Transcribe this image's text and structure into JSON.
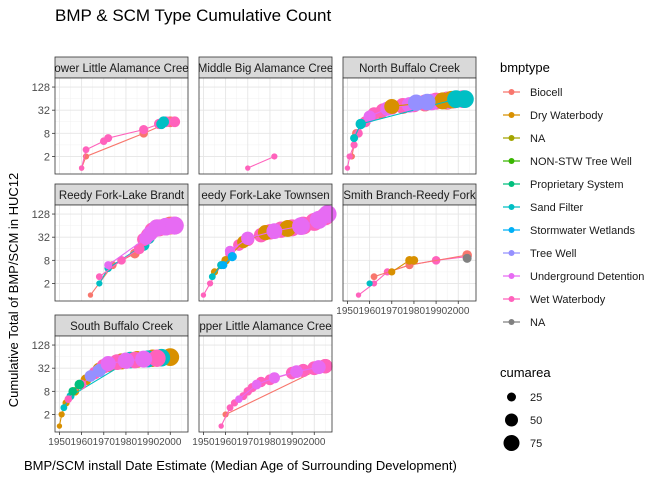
{
  "chart_data": {
    "type": "scatter",
    "title": "BMP & SCM Type Cumulative Count",
    "xlabel": "BMP/SCM install Date Estimate (Median Age of Surrounding Development)",
    "ylabel": "Cumulative Total of BMP/SCM in HUC12",
    "x_ticks": [
      1950,
      1960,
      1970,
      1980,
      1990,
      2000
    ],
    "y_ticks": [
      2,
      8,
      32,
      128
    ],
    "y_scale": "log2",
    "xlim": [
      1948,
      2008
    ],
    "ylim": [
      0.7,
      220
    ],
    "grid": true,
    "legend": {
      "title": "bmptype",
      "items": [
        {
          "label": "Biocell",
          "color": "#F8766D"
        },
        {
          "label": "Dry Waterbody",
          "color": "#D89000"
        },
        {
          "label": "NA",
          "color": "#A3A500"
        },
        {
          "label": "NON-STW Tree Well",
          "color": "#39B600"
        },
        {
          "label": "Proprietary System",
          "color": "#00BF7D"
        },
        {
          "label": "Sand Filter",
          "color": "#00BFC4"
        },
        {
          "label": "Stormwater Wetlands",
          "color": "#00B0F6"
        },
        {
          "label": "Tree Well",
          "color": "#9590FF"
        },
        {
          "label": "Underground Detention",
          "color": "#E76BF3"
        },
        {
          "label": "Wet Waterbody",
          "color": "#FF62BC"
        },
        {
          "label": "NA",
          "color": "#808080"
        }
      ],
      "size_title": "cumarea",
      "size_items": [
        25,
        50,
        75
      ]
    },
    "panels": [
      {
        "name": "Lower Little Alamance Creek",
        "label_shown": "ower Little Alamance Cree",
        "series": [
          {
            "type": "Biocell",
            "color": "#F8766D",
            "points": [
              [
                1960,
                1
              ],
              [
                1962,
                2
              ],
              [
                1988,
                8
              ],
              [
                2000,
                16
              ]
            ]
          },
          {
            "type": "Wet Waterbody",
            "color": "#FF62BC",
            "points": [
              [
                1960,
                1
              ],
              [
                1962,
                3
              ],
              [
                1970,
                5
              ],
              [
                1972,
                6
              ],
              [
                1988,
                10
              ],
              [
                1995,
                14
              ],
              [
                1998,
                16
              ],
              [
                2002,
                16
              ]
            ]
          },
          {
            "type": "Sand Filter",
            "color": "#00BFC4",
            "points": [
              [
                1996,
                14
              ],
              [
                1997,
                16
              ]
            ]
          }
        ]
      },
      {
        "name": "Middle Big Alamance Creek",
        "label_shown": "Middle Big Alamance Cree",
        "series": [
          {
            "type": "Wet Waterbody",
            "color": "#FF62BC",
            "points": [
              [
                1970,
                1
              ],
              [
                1982,
                2
              ]
            ]
          }
        ]
      },
      {
        "name": "North Buffalo Creek",
        "label_shown": "North Buffalo Creek",
        "series": [
          {
            "type": "Biocell",
            "color": "#F8766D",
            "points": [
              [
                1952,
                2
              ],
              [
                1954,
                8
              ],
              [
                1958,
                16
              ],
              [
                1965,
                28
              ],
              [
                1975,
                40
              ],
              [
                1985,
                48
              ],
              [
                1995,
                55
              ]
            ]
          },
          {
            "type": "Wet Waterbody",
            "color": "#FF62BC",
            "points": [
              [
                1950,
                1
              ],
              [
                1951,
                2
              ],
              [
                1953,
                4
              ],
              [
                1955,
                8
              ],
              [
                1958,
                16
              ],
              [
                1962,
                26
              ],
              [
                1966,
                32
              ],
              [
                1970,
                38
              ],
              [
                1975,
                42
              ],
              [
                1980,
                45
              ],
              [
                1985,
                50
              ],
              [
                1990,
                55
              ],
              [
                1995,
                58
              ],
              [
                1998,
                60
              ],
              [
                2002,
                62
              ]
            ]
          },
          {
            "type": "Underground Detention",
            "color": "#E76BF3",
            "points": [
              [
                1960,
                22
              ],
              [
                1968,
                35
              ],
              [
                1978,
                44
              ],
              [
                1988,
                52
              ],
              [
                1996,
                58
              ]
            ]
          },
          {
            "type": "Dry Waterbody",
            "color": "#D89000",
            "points": [
              [
                1970,
                40
              ],
              [
                1993,
                56
              ],
              [
                1997,
                60
              ]
            ]
          },
          {
            "type": "Sand Filter",
            "color": "#00BFC4",
            "points": [
              [
                1953,
                6
              ],
              [
                1956,
                14
              ],
              [
                1999,
                62
              ],
              [
                2003,
                62
              ]
            ]
          },
          {
            "type": "Tree Well",
            "color": "#9590FF",
            "points": [
              [
                1981,
                50
              ],
              [
                1986,
                52
              ]
            ]
          }
        ]
      },
      {
        "name": "Reedy Fork-Lake Brandt",
        "label_shown": "Reedy Fork-Lake Brandt",
        "series": [
          {
            "type": "Biocell",
            "color": "#F8766D",
            "points": [
              [
                1964,
                1
              ],
              [
                1974,
                6
              ],
              [
                1984,
                12
              ],
              [
                1990,
                32
              ],
              [
                1994,
                56
              ],
              [
                2000,
                64
              ]
            ]
          },
          {
            "type": "Sand Filter",
            "color": "#00BFC4",
            "points": [
              [
                1968,
                2
              ],
              [
                1972,
                5
              ],
              [
                1988,
                20
              ],
              [
                1990,
                32
              ]
            ]
          },
          {
            "type": "Wet Waterbody",
            "color": "#FF62BC",
            "points": [
              [
                1968,
                3
              ],
              [
                1978,
                8
              ],
              [
                1986,
                16
              ],
              [
                1988,
                28
              ],
              [
                1990,
                36
              ],
              [
                1992,
                48
              ],
              [
                1995,
                56
              ],
              [
                1998,
                60
              ],
              [
                2002,
                64
              ]
            ]
          },
          {
            "type": "Underground Detention",
            "color": "#E76BF3",
            "points": [
              [
                1972,
                6
              ],
              [
                1989,
                30
              ],
              [
                1991,
                40
              ],
              [
                1994,
                56
              ],
              [
                1998,
                60
              ],
              [
                2002,
                64
              ]
            ]
          }
        ]
      },
      {
        "name": "Reedy Fork-Lake Townsend",
        "label_shown": "eedy Fork-Lake Townsen",
        "series": [
          {
            "type": "Wet Waterbody",
            "color": "#FF62BC",
            "points": [
              [
                1950,
                1
              ],
              [
                1953,
                2
              ],
              [
                1958,
                6
              ],
              [
                1962,
                12
              ],
              [
                1966,
                20
              ],
              [
                1970,
                28
              ],
              [
                1976,
                36
              ],
              [
                1980,
                44
              ],
              [
                1985,
                50
              ],
              [
                1990,
                56
              ],
              [
                1995,
                64
              ],
              [
                2000,
                80
              ],
              [
                2005,
                112
              ]
            ]
          },
          {
            "type": "Dry Waterbody",
            "color": "#D89000",
            "points": [
              [
                1955,
                4
              ],
              [
                1960,
                8
              ],
              [
                1968,
                24
              ],
              [
                1978,
                42
              ],
              [
                1988,
                54
              ]
            ]
          },
          {
            "type": "Sand Filter",
            "color": "#00BFC4",
            "points": [
              [
                1954,
                3
              ],
              [
                1958,
                6
              ]
            ]
          },
          {
            "type": "Underground Detention",
            "color": "#E76BF3",
            "points": [
              [
                1962,
                14
              ],
              [
                1970,
                30
              ],
              [
                1982,
                46
              ],
              [
                1994,
                62
              ],
              [
                2002,
                90
              ],
              [
                2006,
                128
              ]
            ]
          },
          {
            "type": "Stormwater Wetlands",
            "color": "#00B0F6",
            "points": [
              [
                1959,
                6
              ],
              [
                1963,
                10
              ]
            ]
          }
        ]
      },
      {
        "name": "Smith Branch-Reedy Fork",
        "label_shown": "Smith Branch-Reedy Fork",
        "series": [
          {
            "type": "Wet Waterbody",
            "color": "#FF62BC",
            "points": [
              [
                1955,
                1
              ],
              [
                1962,
                2
              ],
              [
                1968,
                4
              ],
              [
                1978,
                6
              ],
              [
                1990,
                8
              ],
              [
                2004,
                10
              ]
            ]
          },
          {
            "type": "Biocell",
            "color": "#F8766D",
            "points": [
              [
                1962,
                3
              ],
              [
                1978,
                6
              ],
              [
                2004,
                11
              ]
            ]
          },
          {
            "type": "Dry Waterbody",
            "color": "#D89000",
            "points": [
              [
                1970,
                4
              ],
              [
                1978,
                8
              ],
              [
                1980,
                8
              ]
            ]
          },
          {
            "type": "NA",
            "color": "#808080",
            "points": [
              [
                2004,
                9
              ]
            ]
          },
          {
            "type": "Sand Filter",
            "color": "#00BFC4",
            "points": [
              [
                1960,
                2
              ]
            ]
          }
        ]
      },
      {
        "name": "South Buffalo Creek",
        "label_shown": "South Buffalo Creek",
        "series": [
          {
            "type": "Dry Waterbody",
            "color": "#D89000",
            "points": [
              [
                1950,
                1
              ],
              [
                1951,
                2
              ],
              [
                1953,
                4
              ],
              [
                1957,
                8
              ],
              [
                1962,
                16
              ],
              [
                1968,
                30
              ],
              [
                1972,
                40
              ],
              [
                1978,
                48
              ],
              [
                1985,
                54
              ],
              [
                1992,
                58
              ],
              [
                2000,
                62
              ]
            ]
          },
          {
            "type": "Sand Filter",
            "color": "#00BFC4",
            "points": [
              [
                1952,
                3
              ],
              [
                1955,
                6
              ],
              [
                1982,
                52
              ],
              [
                1990,
                56
              ],
              [
                1996,
                60
              ]
            ]
          },
          {
            "type": "Wet Waterbody",
            "color": "#FF62BC",
            "points": [
              [
                1954,
                5
              ],
              [
                1960,
                12
              ],
              [
                1966,
                24
              ],
              [
                1970,
                36
              ],
              [
                1976,
                46
              ],
              [
                1984,
                52
              ],
              [
                1994,
                58
              ]
            ]
          },
          {
            "type": "Proprietary System",
            "color": "#00BF7D",
            "points": [
              [
                1956,
                8
              ],
              [
                1959,
                12
              ]
            ]
          },
          {
            "type": "Tree Well",
            "color": "#9590FF",
            "points": [
              [
                1964,
                20
              ],
              [
                1968,
                28
              ]
            ]
          },
          {
            "type": "Underground Detention",
            "color": "#E76BF3",
            "points": [
              [
                1972,
                42
              ],
              [
                1980,
                50
              ],
              [
                1988,
                55
              ]
            ]
          }
        ]
      },
      {
        "name": "Upper Little Alamance Creek",
        "label_shown": "pper Little Alamance Cree",
        "series": [
          {
            "type": "Biocell",
            "color": "#F8766D",
            "points": [
              [
                1960,
                2
              ],
              [
                2005,
                36
              ]
            ]
          },
          {
            "type": "Wet Waterbody",
            "color": "#FF62BC",
            "points": [
              [
                1958,
                1
              ],
              [
                1962,
                3
              ],
              [
                1964,
                4
              ],
              [
                1968,
                6
              ],
              [
                1970,
                8
              ],
              [
                1972,
                10
              ],
              [
                1976,
                14
              ],
              [
                1980,
                16
              ],
              [
                1990,
                24
              ],
              [
                1995,
                28
              ],
              [
                2000,
                32
              ],
              [
                2005,
                36
              ]
            ]
          },
          {
            "type": "Underground Detention",
            "color": "#E76BF3",
            "points": [
              [
                1966,
                5
              ],
              [
                1974,
                12
              ],
              [
                1982,
                18
              ],
              [
                1992,
                26
              ],
              [
                2002,
                34
              ]
            ]
          }
        ]
      }
    ]
  }
}
